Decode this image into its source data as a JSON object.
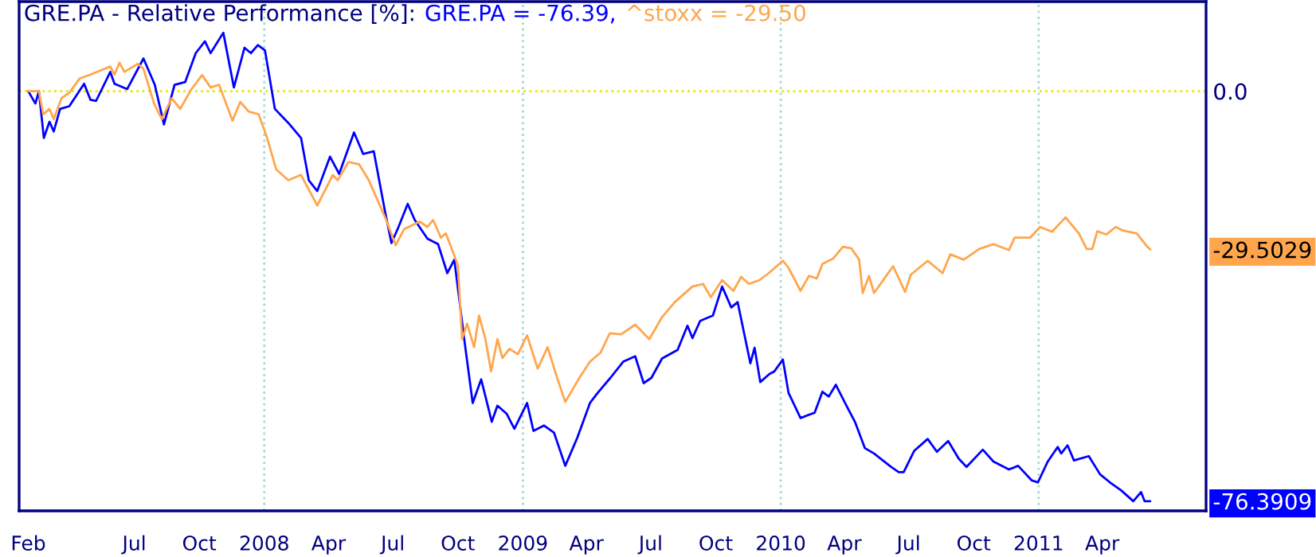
{
  "chart_data": {
    "type": "line",
    "title": "GRE.PA - Relative Performance [%]:",
    "annotations": [
      "GRE.PA = -76.39,",
      "^stoxx = -29.50"
    ],
    "xlim": [
      "2007-01-19",
      "2011-08-26"
    ],
    "xticks": [
      {
        "value": "2007-02-01",
        "label": "Feb"
      },
      {
        "value": "2007-07-01",
        "label": "Jul"
      },
      {
        "value": "2007-10-01",
        "label": "Oct"
      },
      {
        "value": "2008-01-01",
        "label": "2008"
      },
      {
        "value": "2008-04-01",
        "label": "Apr"
      },
      {
        "value": "2008-07-01",
        "label": "Jul"
      },
      {
        "value": "2008-10-01",
        "label": "Oct"
      },
      {
        "value": "2009-01-01",
        "label": "2009"
      },
      {
        "value": "2009-04-01",
        "label": "Apr"
      },
      {
        "value": "2009-07-01",
        "label": "Jul"
      },
      {
        "value": "2009-10-01",
        "label": "Oct"
      },
      {
        "value": "2010-01-01",
        "label": "2010"
      },
      {
        "value": "2010-04-01",
        "label": "Apr"
      },
      {
        "value": "2010-07-01",
        "label": "Jul"
      },
      {
        "value": "2010-10-01",
        "label": "Oct"
      },
      {
        "value": "2011-01-01",
        "label": "2011"
      },
      {
        "value": "2011-04-01",
        "label": "Apr"
      }
    ],
    "ylim": [
      -78.2,
      16.7
    ],
    "yticks": [
      {
        "value": 0,
        "label": "0.0"
      },
      {
        "value": -29.5029,
        "label": "-29.5029"
      },
      {
        "value": -76.3909,
        "label": "-76.3909"
      }
    ],
    "grid": false,
    "legend": false,
    "ref_lines": [
      {
        "axis": "y",
        "value": 0,
        "label": null,
        "color": "#e8e800",
        "line_style": "dotted"
      },
      {
        "axis": "x",
        "value": "2008-01-01",
        "label": null,
        "color": "#a8d8d8",
        "line_style": "dotted"
      },
      {
        "axis": "x",
        "value": "2009-01-01",
        "label": null,
        "color": "#a8d8d8",
        "line_style": "dotted"
      },
      {
        "axis": "x",
        "value": "2010-01-01",
        "label": null,
        "color": "#a8d8d8",
        "line_style": "dotted"
      },
      {
        "axis": "x",
        "value": "2011-01-01",
        "label": null,
        "color": "#a8d8d8",
        "line_style": "dotted"
      }
    ],
    "series": [
      {
        "color": "#0000ff",
        "x": [
          "2007-02-01",
          "2007-02-11",
          "2007-02-16",
          "2007-02-23",
          "2007-03-03",
          "2007-03-09",
          "2007-03-18",
          "2007-03-31",
          "2007-04-21",
          "2007-04-30",
          "2007-05-08",
          "2007-05-28",
          "2007-06-03",
          "2007-06-21",
          "2007-07-14",
          "2007-07-30",
          "2007-08-12",
          "2007-08-27",
          "2007-09-11",
          "2007-09-26",
          "2007-10-09",
          "2007-10-17",
          "2007-11-04",
          "2007-11-19",
          "2007-12-04",
          "2007-12-13",
          "2007-12-23",
          "2008-01-02",
          "2008-01-16",
          "2008-02-04",
          "2008-02-22",
          "2008-03-04",
          "2008-03-16",
          "2008-04-03",
          "2008-04-16",
          "2008-05-07",
          "2008-05-20",
          "2008-06-04",
          "2008-06-20",
          "2008-06-29",
          "2008-07-09",
          "2008-07-22",
          "2008-08-01",
          "2008-08-19",
          "2008-09-03",
          "2008-09-16",
          "2008-09-26",
          "2008-10-10",
          "2008-10-22",
          "2008-11-03",
          "2008-11-18",
          "2008-11-26",
          "2008-12-09",
          "2008-12-20",
          "2009-01-07",
          "2009-01-16",
          "2009-01-31",
          "2009-02-14",
          "2009-03-02",
          "2009-03-19",
          "2009-04-06",
          "2009-04-17",
          "2009-05-05",
          "2009-05-23",
          "2009-06-09",
          "2009-06-21",
          "2009-07-02",
          "2009-07-17",
          "2009-08-08",
          "2009-08-22",
          "2009-08-29",
          "2009-09-09",
          "2009-09-27",
          "2009-10-10",
          "2009-10-23",
          "2009-11-01",
          "2009-11-19",
          "2009-11-25",
          "2009-12-03",
          "2009-12-16",
          "2009-12-23",
          "2010-01-04",
          "2010-01-12",
          "2010-01-29",
          "2010-02-18",
          "2010-03-01",
          "2010-03-10",
          "2010-03-20",
          "2010-04-04",
          "2010-04-16",
          "2010-04-30",
          "2010-05-13",
          "2010-06-06",
          "2010-06-17",
          "2010-06-24",
          "2010-07-09",
          "2010-07-28",
          "2010-08-10",
          "2010-08-26",
          "2010-09-10",
          "2010-09-21",
          "2010-10-14",
          "2010-10-29",
          "2010-11-20",
          "2010-12-03",
          "2010-12-22",
          "2010-12-31",
          "2011-01-14",
          "2011-01-28",
          "2011-02-02",
          "2011-02-11",
          "2011-02-20",
          "2011-03-13",
          "2011-03-29",
          "2011-04-12",
          "2011-04-28",
          "2011-05-15",
          "2011-05-26",
          "2011-05-31",
          "2011-06-08"
        ],
        "values": [
          0,
          -2.3,
          0,
          -8.7,
          -5.7,
          -7.5,
          -3.3,
          -2.8,
          1.4,
          -1.6,
          -1.8,
          3.6,
          1.4,
          0.4,
          6.1,
          1.2,
          -6.2,
          1.2,
          1.7,
          7.1,
          9.3,
          7.1,
          10.9,
          0.7,
          8.1,
          7.1,
          8.6,
          7.6,
          -3.3,
          -5.9,
          -8.7,
          -16.6,
          -18.6,
          -12.2,
          -15.4,
          -7.7,
          -11.7,
          -11.2,
          -22.5,
          -28.3,
          -25.3,
          -21,
          -24,
          -27.5,
          -28.5,
          -33.9,
          -31.4,
          -46.2,
          -58.1,
          -53.7,
          -61.6,
          -58.6,
          -60.1,
          -62.9,
          -58.1,
          -63.3,
          -62.3,
          -63.6,
          -69.8,
          -64.6,
          -58.1,
          -56.2,
          -53.4,
          -50.4,
          -49.4,
          -54.4,
          -53.4,
          -49.8,
          -48.2,
          -43.7,
          -46,
          -42.8,
          -41.8,
          -36.4,
          -40.3,
          -39.3,
          -50.7,
          -47.8,
          -54.2,
          -52.7,
          -52.2,
          -50,
          -56.2,
          -60.9,
          -59.9,
          -56,
          -56.9,
          -54.7,
          -58.6,
          -61.6,
          -66.5,
          -67.5,
          -70,
          -71,
          -71,
          -67,
          -64.8,
          -67.2,
          -65.2,
          -68.5,
          -70,
          -66.8,
          -69,
          -70.5,
          -69.8,
          -72.5,
          -72.9,
          -69,
          -66.3,
          -67.5,
          -66,
          -68.8,
          -68,
          -71.4,
          -72.9,
          -74.4,
          -76.4,
          -74.7,
          -76.4,
          -76.3909
        ]
      },
      {
        "color": "#ffa64d",
        "x": [
          "2007-02-01",
          "2007-02-16",
          "2007-02-22",
          "2007-03-03",
          "2007-03-09",
          "2007-03-20",
          "2007-03-31",
          "2007-04-15",
          "2007-04-30",
          "2007-05-15",
          "2007-05-28",
          "2007-06-03",
          "2007-06-10",
          "2007-06-17",
          "2007-07-06",
          "2007-07-14",
          "2007-07-29",
          "2007-08-09",
          "2007-08-23",
          "2007-09-04",
          "2007-09-19",
          "2007-10-05",
          "2007-10-17",
          "2007-10-29",
          "2007-11-17",
          "2007-11-28",
          "2007-12-10",
          "2007-12-24",
          "2008-01-05",
          "2008-01-18",
          "2008-02-04",
          "2008-02-22",
          "2008-03-16",
          "2008-04-07",
          "2008-04-14",
          "2008-04-29",
          "2008-05-14",
          "2008-05-28",
          "2008-06-20",
          "2008-07-05",
          "2008-07-17",
          "2008-08-08",
          "2008-08-19",
          "2008-08-27",
          "2008-09-07",
          "2008-09-14",
          "2008-10-01",
          "2008-10-07",
          "2008-10-14",
          "2008-10-24",
          "2008-10-31",
          "2008-11-09",
          "2008-11-17",
          "2008-11-26",
          "2008-12-03",
          "2008-12-13",
          "2008-12-25",
          "2009-01-07",
          "2009-01-22",
          "2009-02-05",
          "2009-02-18",
          "2009-03-02",
          "2009-03-23",
          "2009-04-06",
          "2009-04-21",
          "2009-05-04",
          "2009-05-20",
          "2009-06-09",
          "2009-06-29",
          "2009-07-17",
          "2009-08-04",
          "2009-08-29",
          "2009-09-13",
          "2009-09-24",
          "2009-10-10",
          "2009-10-26",
          "2009-11-06",
          "2009-11-17",
          "2009-12-02",
          "2009-12-15",
          "2010-01-04",
          "2010-01-12",
          "2010-01-29",
          "2010-02-10",
          "2010-02-21",
          "2010-03-01",
          "2010-03-16",
          "2010-03-30",
          "2010-04-11",
          "2010-04-22",
          "2010-04-27",
          "2010-05-06",
          "2010-05-13",
          "2010-05-25",
          "2010-06-09",
          "2010-06-26",
          "2010-07-04",
          "2010-07-16",
          "2010-07-28",
          "2010-08-18",
          "2010-08-29",
          "2010-09-17",
          "2010-10-09",
          "2010-10-29",
          "2010-11-20",
          "2010-11-28",
          "2010-12-20",
          "2011-01-03",
          "2011-01-20",
          "2011-02-08",
          "2011-02-27",
          "2011-03-10",
          "2011-03-18",
          "2011-03-25",
          "2011-04-07",
          "2011-04-20",
          "2011-05-01",
          "2011-05-20",
          "2011-06-02",
          "2011-06-08"
        ],
        "values": [
          0,
          0,
          -4.3,
          -3.3,
          -5.2,
          -1.3,
          -0.3,
          2.4,
          3.1,
          3.9,
          4.6,
          3.1,
          5.3,
          3.6,
          5.1,
          4.2,
          -2.3,
          -5.2,
          -1.3,
          -3.3,
          0.2,
          3,
          0.7,
          1.2,
          -5.5,
          -2,
          -3.8,
          -4.3,
          -8.7,
          -14.6,
          -16.6,
          -15.6,
          -21.3,
          -15.6,
          -16.6,
          -13.2,
          -13.6,
          -16.6,
          -23.5,
          -28.7,
          -25.7,
          -24.3,
          -25.3,
          -24,
          -27.3,
          -26.5,
          -32.4,
          -46.2,
          -43.3,
          -47.7,
          -41.8,
          -46.2,
          -52.2,
          -46.2,
          -49.7,
          -48,
          -49,
          -45.5,
          -51.7,
          -47.7,
          -53.2,
          -57.9,
          -53.2,
          -50.4,
          -48.7,
          -45.1,
          -45.3,
          -43.5,
          -46.2,
          -42.1,
          -39.3,
          -36.4,
          -35.9,
          -38.4,
          -35.2,
          -37.2,
          -34.6,
          -35.9,
          -35.2,
          -33.9,
          -31.6,
          -32.9,
          -37.2,
          -34.4,
          -34.9,
          -32.2,
          -31.2,
          -29,
          -29.3,
          -31.4,
          -37.6,
          -34.4,
          -37.6,
          -35.4,
          -32.6,
          -37.4,
          -34.2,
          -32.9,
          -31.6,
          -33.9,
          -30.4,
          -31.4,
          -29.4,
          -28.5,
          -29.6,
          -27.3,
          -27.3,
          -25.3,
          -26.2,
          -23.5,
          -26.5,
          -29.4,
          -29.4,
          -26.1,
          -26.7,
          -25.3,
          -26,
          -26.5,
          -28.7,
          -29.5029
        ]
      }
    ]
  }
}
